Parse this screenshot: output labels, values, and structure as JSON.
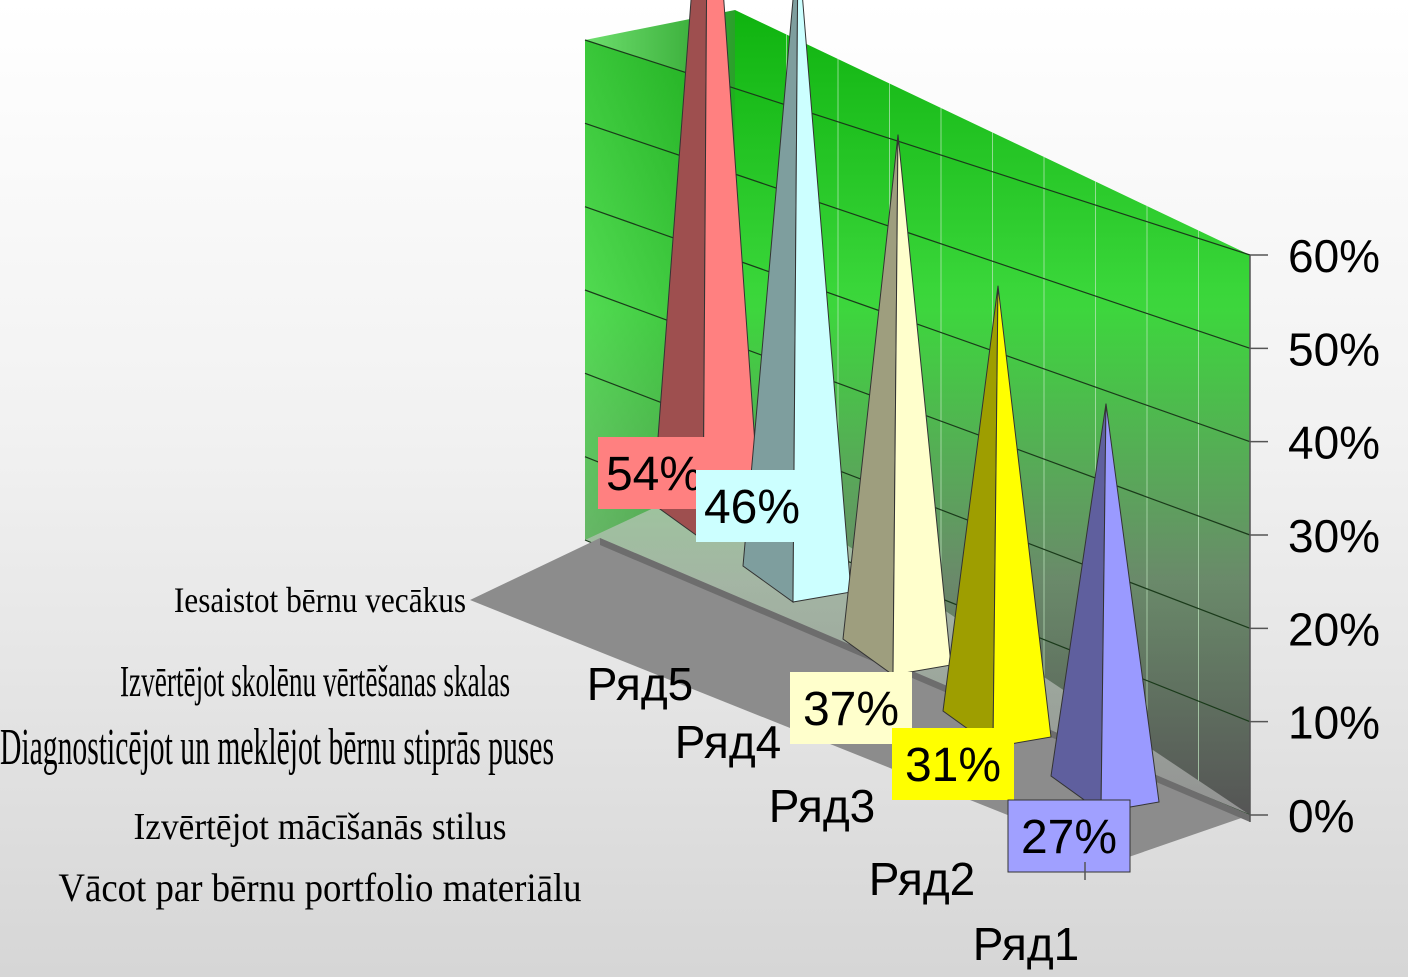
{
  "chart_data": {
    "type": "bar",
    "subtype": "3d-pyramid",
    "series": [
      {
        "name": "Ряд1",
        "value": 27,
        "label": "27%",
        "color": "#9a9aff"
      },
      {
        "name": "Ряд2",
        "value": 31,
        "label": "31%",
        "color": "#ffff00"
      },
      {
        "name": "Ряд3",
        "value": 37,
        "label": "37%",
        "color": "#ffffcc"
      },
      {
        "name": "Ряд4",
        "value": 46,
        "label": "46%",
        "color": "#ccffff"
      },
      {
        "name": "Ряд5",
        "value": 54,
        "label": "54%",
        "color": "#ff8080"
      }
    ],
    "y_ticks": [
      "0%",
      "10%",
      "20%",
      "30%",
      "40%",
      "50%",
      "60%"
    ],
    "ylim": [
      0,
      60
    ],
    "grid": true,
    "wall_color": "#10b010"
  },
  "legend_items": [
    "Iesaistot bērnu vecākus",
    "Izvērtējot skolēnu vērtēšanas skalas",
    "Diagnosticējot un meklējot bērnu stiprās puses",
    "Izvērtējot mācīšanās  stilus",
    "Vācot par bērnu portfolio materiālu"
  ]
}
